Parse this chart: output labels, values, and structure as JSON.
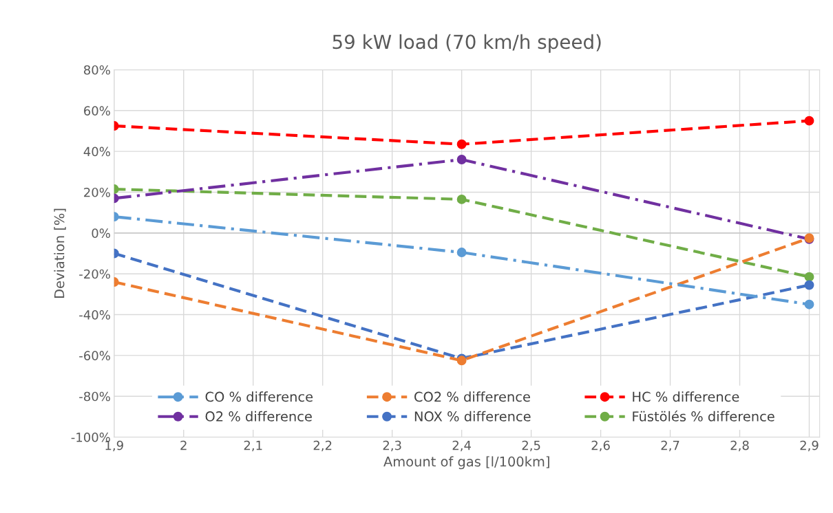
{
  "chart_data": {
    "type": "line",
    "title": "59 kW load (70 km/h speed)",
    "xlabel": "Amount of gas [l/100km]",
    "ylabel": "Deviation [%]",
    "x": [
      1.9,
      2.4,
      2.9
    ],
    "series": [
      {
        "name": "CO % difference",
        "color": "#5b9bd5",
        "values": [
          8,
          -9.5,
          -35
        ],
        "line_style": "dashdot"
      },
      {
        "name": "CO2 % difference",
        "color": "#ed7d31",
        "values": [
          -24,
          -62.5,
          -2.5
        ],
        "line_style": "dashed"
      },
      {
        "name": "HC % difference",
        "color": "#ff0000",
        "values": [
          52.5,
          43.5,
          55
        ],
        "line_style": "dashed"
      },
      {
        "name": "O2 % difference",
        "color": "#7030a0",
        "values": [
          17,
          36,
          -3
        ],
        "line_style": "dashdot"
      },
      {
        "name": "NOX % difference",
        "color": "#4472c4",
        "values": [
          -10,
          -61.5,
          -25.5
        ],
        "line_style": "dashed"
      },
      {
        "name": "Füstölés % difference",
        "color": "#70ad47",
        "values": [
          21.5,
          16.5,
          -21.5
        ],
        "line_style": "dashed"
      }
    ],
    "xlim": [
      1.9,
      2.915
    ],
    "xticks": [
      {
        "value": 1.9,
        "label": "1,9"
      },
      {
        "value": 2.0,
        "label": "2"
      },
      {
        "value": 2.1,
        "label": "2,1"
      },
      {
        "value": 2.2,
        "label": "2,2"
      },
      {
        "value": 2.3,
        "label": "2,3"
      },
      {
        "value": 2.4,
        "label": "2,4"
      },
      {
        "value": 2.5,
        "label": "2,5"
      },
      {
        "value": 2.6,
        "label": "2,6"
      },
      {
        "value": 2.7,
        "label": "2,7"
      },
      {
        "value": 2.8,
        "label": "2,8"
      },
      {
        "value": 2.9,
        "label": "2,9"
      }
    ],
    "ylim": [
      -100,
      80
    ],
    "yticks": [
      {
        "value": -100,
        "label": "-100%"
      },
      {
        "value": -80,
        "label": "-80%"
      },
      {
        "value": -60,
        "label": "-60%"
      },
      {
        "value": -40,
        "label": "-40%"
      },
      {
        "value": -20,
        "label": "-20%"
      },
      {
        "value": 0,
        "label": "0%"
      },
      {
        "value": 20,
        "label": "20%"
      },
      {
        "value": 40,
        "label": "40%"
      },
      {
        "value": 60,
        "label": "60%"
      },
      {
        "value": 80,
        "label": "80%"
      }
    ],
    "grid": true,
    "legend": "bottom",
    "marker": "circle"
  }
}
